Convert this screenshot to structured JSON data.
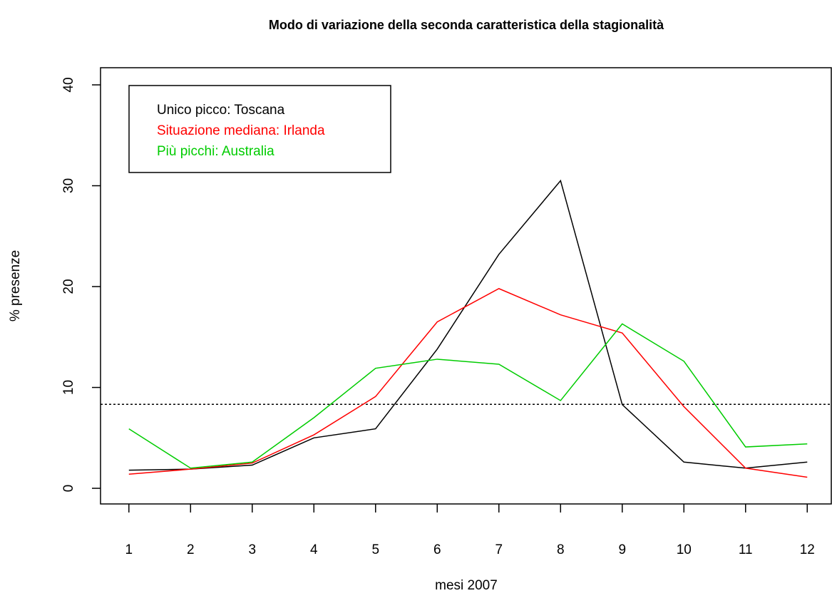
{
  "chart_data": {
    "type": "line",
    "title": "Modo di variazione della seconda caratteristica della stagionalità",
    "x_label": "mesi 2007",
    "y_label": "% presenze",
    "x": [
      1,
      2,
      3,
      4,
      5,
      6,
      7,
      8,
      9,
      10,
      11,
      12
    ],
    "series": [
      {
        "name": "Unico picco: Toscana",
        "color": "#000000",
        "values": [
          1.8,
          1.9,
          2.3,
          5.0,
          5.9,
          13.8,
          23.2,
          30.5,
          8.3,
          2.6,
          2.0,
          2.6
        ]
      },
      {
        "name": "Situazione mediana: Irlanda",
        "color": "#ff0000",
        "values": [
          1.4,
          1.9,
          2.5,
          5.3,
          9.1,
          16.5,
          19.8,
          17.2,
          15.4,
          8.1,
          2.0,
          1.1
        ]
      },
      {
        "name": "Più picchi: Australia",
        "color": "#00cc00",
        "values": [
          5.9,
          2.0,
          2.6,
          7.0,
          11.9,
          12.8,
          12.3,
          8.7,
          16.3,
          12.6,
          4.1,
          4.4
        ]
      }
    ],
    "hline": 8.33,
    "xlim": [
      0.54,
      12.39
    ],
    "ylim": [
      -1.55,
      41.7
    ],
    "xticks": [
      1,
      2,
      3,
      4,
      5,
      6,
      7,
      8,
      9,
      10,
      11,
      12
    ],
    "yticks": [
      0,
      10,
      20,
      30,
      40
    ],
    "legend": "top-left"
  }
}
